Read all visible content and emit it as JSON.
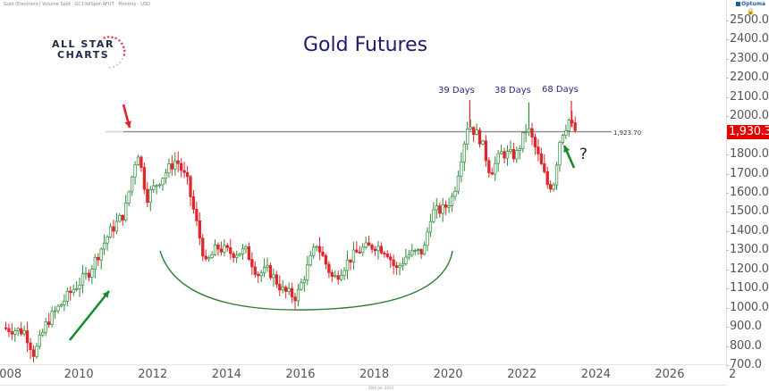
{
  "header": {
    "instrument_line": "Gold (Electronic) Volume Spot · GC1VolSpot:AFUT · Monthly · USD",
    "brand": "Optuma",
    "lock_icon": "lock-icon"
  },
  "logo": {
    "line1": "ALL STAR",
    "line2": "CHARTS"
  },
  "colors": {
    "up": "#2e8b3a",
    "down": "#e0262b",
    "title": "#1c1c6e",
    "level_line": "#8a8a8a",
    "price_tag": "#e50000",
    "arrow_green": "#1a8a2a",
    "arrow_red": "#e0262b",
    "arc": "#2e7d32"
  },
  "annotations": {
    "level_value": "1,923.70",
    "price_tag": "1,930.3",
    "peaks": [
      "39 Days",
      "38 Days",
      "68 Days"
    ],
    "question": "?"
  },
  "footer": {
    "date": "26th Jun 2023"
  },
  "chart_data": {
    "type": "candlestick",
    "title": "Gold Futures",
    "xlabel": "",
    "ylabel": "",
    "frequency": "Monthly",
    "currency": "USD",
    "x_ticks": [
      "2008",
      "2010",
      "2012",
      "2014",
      "2016",
      "2018",
      "2020",
      "2022",
      "2024",
      "2026",
      "2"
    ],
    "y_ticks": [
      "2500.0",
      "2400.0",
      "2300.0",
      "2200.0",
      "2100.0",
      "2000.0",
      "1900.0",
      "1800.0",
      "1700.0",
      "1600.0",
      "1500.0",
      "1400.0",
      "1300.0",
      "1200.0",
      "1100.0",
      "1000.0",
      "900.0",
      "800.0",
      "700.0"
    ],
    "ylim": [
      700,
      2500
    ],
    "xlim": [
      "2008-01",
      "2027-06"
    ],
    "grid": false,
    "horizontal_level": 1923.7,
    "last_price": 1930.3,
    "annotations": [
      {
        "type": "arrow",
        "color": "red",
        "target": "2011-08 high ~1923"
      },
      {
        "type": "arrow",
        "color": "green",
        "direction": "up",
        "near": "2009-2010 uptrend"
      },
      {
        "type": "arc",
        "label": "rounded base",
        "from": "2012",
        "to": "2020"
      },
      {
        "type": "text",
        "text": "39 Days",
        "near": "2020-08 high ~2089"
      },
      {
        "type": "text",
        "text": "38 Days",
        "near": "2022-03 high ~2078"
      },
      {
        "type": "text",
        "text": "68 Days",
        "near": "2023-05 high ~2085"
      },
      {
        "type": "arrow",
        "color": "green",
        "direction": "up",
        "near": "2023-06"
      },
      {
        "type": "text",
        "text": "?",
        "near": "2023-07"
      }
    ],
    "closes_approx": {
      "x": [
        "2008",
        "2009",
        "2010",
        "2011-08",
        "2012",
        "2013",
        "2014",
        "2015-12",
        "2016-07",
        "2017",
        "2018-08",
        "2019",
        "2020-08",
        "2021",
        "2022-03",
        "2022-10",
        "2023-05",
        "2023-06"
      ],
      "y": [
        880,
        1100,
        1400,
        1830,
        1660,
        1200,
        1200,
        1060,
        1350,
        1300,
        1200,
        1520,
        1970,
        1800,
        1940,
        1640,
        1990,
        1930
      ]
    }
  }
}
